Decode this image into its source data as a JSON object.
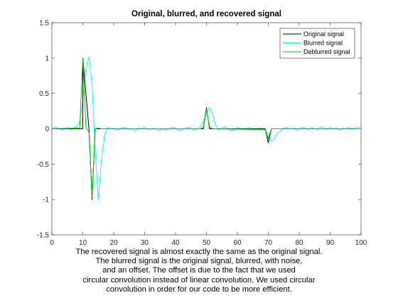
{
  "chart_data": {
    "type": "line",
    "title": "Original, blurred, and recovered signal",
    "xlabel": "",
    "ylabel": "",
    "xlim": [
      0,
      100
    ],
    "ylim": [
      -1.5,
      1.5
    ],
    "xticks": [
      0,
      10,
      20,
      30,
      40,
      50,
      60,
      70,
      80,
      90,
      100
    ],
    "yticks": [
      -1.5,
      -1,
      -0.5,
      0,
      0.5,
      1,
      1.5
    ],
    "xtick_labels": [
      "0",
      "10",
      "20",
      "30",
      "40",
      "50",
      "60",
      "70",
      "80",
      "90",
      "100"
    ],
    "ytick_labels": [
      "-1.5",
      "-1",
      "-0.5",
      "0",
      "0.5",
      "1",
      "1.5"
    ],
    "grid": false,
    "legend_position": "top-right",
    "series": [
      {
        "name": "Original signal",
        "color": "#000000",
        "x": [
          0,
          10,
          10.001,
          12,
          13,
          14,
          49,
          50,
          51,
          69,
          70,
          71,
          100
        ],
        "y": [
          0,
          0,
          1,
          0,
          -1,
          0,
          0,
          0.3,
          0,
          0,
          -0.2,
          0,
          0
        ]
      },
      {
        "name": "Blurred signal",
        "color": "#00FFFF",
        "x": [
          0,
          1,
          2,
          3,
          4,
          5,
          6,
          7,
          8,
          9,
          10,
          11,
          12,
          13,
          14,
          15,
          16,
          17,
          18,
          19,
          20,
          21,
          22,
          23,
          24,
          25,
          26,
          27,
          28,
          29,
          30,
          31,
          32,
          33,
          34,
          35,
          36,
          37,
          38,
          39,
          40,
          41,
          42,
          43,
          44,
          45,
          46,
          47,
          48,
          49,
          50,
          51,
          52,
          53,
          54,
          55,
          56,
          57,
          58,
          59,
          60,
          61,
          62,
          63,
          64,
          65,
          66,
          67,
          68,
          69,
          70,
          71,
          72,
          73,
          74,
          75,
          76,
          77,
          78,
          79,
          80,
          81,
          82,
          83,
          84,
          85,
          86,
          87,
          88,
          89,
          90,
          91,
          92,
          93,
          94,
          95,
          96,
          97,
          98,
          99,
          100
        ],
        "y": [
          0.0,
          0.02,
          0.01,
          -0.01,
          0.0,
          0.02,
          -0.02,
          0.01,
          0.03,
          0.1,
          0.4,
          0.85,
          1.02,
          0.62,
          -0.3,
          -1.0,
          -0.45,
          -0.1,
          0.02,
          0.0,
          0.01,
          -0.02,
          0.0,
          0.02,
          0.01,
          -0.01,
          0.0,
          -0.03,
          0.01,
          0.0,
          0.02,
          -0.01,
          0.0,
          0.01,
          -0.02,
          -0.02,
          0.0,
          -0.01,
          0.0,
          0.02,
          0.01,
          -0.03,
          -0.01,
          0.0,
          0.02,
          0.01,
          -0.02,
          0.0,
          0.03,
          0.1,
          0.22,
          0.3,
          0.2,
          0.05,
          -0.02,
          0.01,
          0.03,
          0.0,
          -0.03,
          -0.01,
          0.02,
          0.0,
          -0.01,
          0.01,
          0.02,
          -0.01,
          0.0,
          0.01,
          0.0,
          -0.02,
          -0.08,
          -0.18,
          -0.13,
          -0.06,
          -0.03,
          0.01,
          0.02,
          0.0,
          0.01,
          -0.02,
          0.0,
          0.02,
          0.01,
          -0.01,
          0.02,
          0.0,
          -0.01,
          0.03,
          0.01,
          -0.01,
          0.02,
          0.0,
          0.01,
          -0.02,
          0.01,
          0.0,
          0.02,
          -0.01,
          0.01,
          0.02,
          0.01
        ]
      },
      {
        "name": "Deblurred signal",
        "color": "#00CC00",
        "x": [
          0,
          9,
          10,
          11,
          12,
          13,
          14,
          15,
          16,
          48,
          49,
          50,
          51,
          52,
          69,
          70,
          71,
          72,
          100
        ],
        "y": [
          0,
          0.01,
          1.0,
          0.02,
          -0.05,
          -0.97,
          0.0,
          0.01,
          0.0,
          0.0,
          0.02,
          0.28,
          0.03,
          0.0,
          -0.01,
          -0.14,
          0.0,
          0.0,
          0
        ]
      }
    ]
  },
  "caption": [
    "The recovered signal is almost exactly the same as the original signal.",
    "The blurred signal is the original signal, blurred, with noise,",
    "and an offset. The offset is due to the fact that we used",
    "circular convolution instead of linear convolution. We used circular",
    "convolution in order for our code to be more efficient."
  ]
}
